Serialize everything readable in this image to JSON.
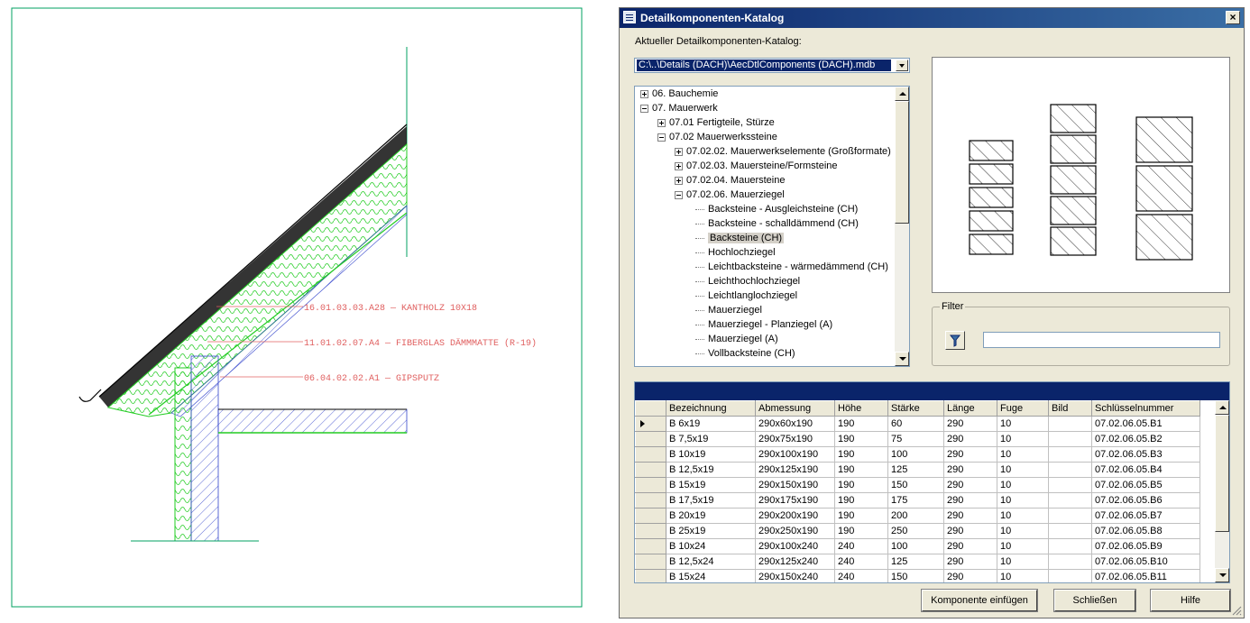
{
  "cad": {
    "annotations": [
      "16.01.03.03.A28  —  KANTHOLZ  10X18",
      "11.01.02.07.A4  —  FIBERGLAS  DÄMMMATTE  (R-19)",
      "06.04.02.02.A1  —  GIPSPUTZ"
    ]
  },
  "dialog": {
    "title": "Detailkomponenten-Katalog",
    "close_label": "×",
    "catalog_label": "Aktueller Detailkomponenten-Katalog:",
    "catalog_path": "C:\\..\\Details (DACH)\\AecDtlComponents (DACH).mdb",
    "tree": [
      {
        "label": "06. Bauchemie",
        "toggle": "plus",
        "level": 0
      },
      {
        "label": "07. Mauerwerk",
        "toggle": "minus",
        "level": 0
      },
      {
        "label": "07.01 Fertigteile, Stürze",
        "toggle": "plus",
        "level": 1
      },
      {
        "label": "07.02 Mauerwerkssteine",
        "toggle": "minus",
        "level": 1
      },
      {
        "label": "07.02.02. Mauerwerkselemente (Großformate)",
        "toggle": "plus",
        "level": 2
      },
      {
        "label": "07.02.03. Mauersteine/Formsteine",
        "toggle": "plus",
        "level": 2
      },
      {
        "label": "07.02.04. Mauersteine",
        "toggle": "plus",
        "level": 2
      },
      {
        "label": "07.02.06. Mauerziegel",
        "toggle": "minus",
        "level": 2
      },
      {
        "label": "Backsteine - Ausgleichsteine (CH)",
        "toggle": "leaf",
        "level": 3
      },
      {
        "label": "Backsteine - schalldämmend (CH)",
        "toggle": "leaf",
        "level": 3
      },
      {
        "label": "Backsteine (CH)",
        "toggle": "leaf",
        "level": 3,
        "selected": true
      },
      {
        "label": "Hochlochziegel",
        "toggle": "leaf",
        "level": 3
      },
      {
        "label": "Leichtbacksteine - wärmedämmend (CH)",
        "toggle": "leaf",
        "level": 3
      },
      {
        "label": "Leichthochlochziegel",
        "toggle": "leaf",
        "level": 3
      },
      {
        "label": "Leichtlanglochziegel",
        "toggle": "leaf",
        "level": 3
      },
      {
        "label": "Mauerziegel",
        "toggle": "leaf",
        "level": 3
      },
      {
        "label": "Mauerziegel - Planziegel (A)",
        "toggle": "leaf",
        "level": 3
      },
      {
        "label": "Mauerziegel (A)",
        "toggle": "leaf",
        "level": 3
      },
      {
        "label": "Vollbacksteine (CH)",
        "toggle": "leaf",
        "level": 3
      }
    ],
    "filter": {
      "legend": "Filter",
      "value": ""
    },
    "table": {
      "columns": [
        "Bezeichnung",
        "Abmessung",
        "Höhe",
        "Stärke",
        "Länge",
        "Fuge",
        "Bild",
        "Schlüsselnummer"
      ],
      "rows": [
        [
          "B 6x19",
          "290x60x190",
          "190",
          "60",
          "290",
          "10",
          "",
          "07.02.06.05.B1"
        ],
        [
          "B 7,5x19",
          "290x75x190",
          "190",
          "75",
          "290",
          "10",
          "",
          "07.02.06.05.B2"
        ],
        [
          "B 10x19",
          "290x100x190",
          "190",
          "100",
          "290",
          "10",
          "",
          "07.02.06.05.B3"
        ],
        [
          "B 12,5x19",
          "290x125x190",
          "190",
          "125",
          "290",
          "10",
          "",
          "07.02.06.05.B4"
        ],
        [
          "B 15x19",
          "290x150x190",
          "190",
          "150",
          "290",
          "10",
          "",
          "07.02.06.05.B5"
        ],
        [
          "B 17,5x19",
          "290x175x190",
          "190",
          "175",
          "290",
          "10",
          "",
          "07.02.06.05.B6"
        ],
        [
          "B 20x19",
          "290x200x190",
          "190",
          "200",
          "290",
          "10",
          "",
          "07.02.06.05.B7"
        ],
        [
          "B 25x19",
          "290x250x190",
          "190",
          "250",
          "290",
          "10",
          "",
          "07.02.06.05.B8"
        ],
        [
          "B 10x24",
          "290x100x240",
          "240",
          "100",
          "290",
          "10",
          "",
          "07.02.06.05.B9"
        ],
        [
          "B 12,5x24",
          "290x125x240",
          "240",
          "125",
          "290",
          "10",
          "",
          "07.02.06.05.B10"
        ],
        [
          "B 15x24",
          "290x150x240",
          "240",
          "150",
          "290",
          "10",
          "",
          "07.02.06.05.B11"
        ]
      ]
    },
    "buttons": {
      "insert": "Komponente einfügen",
      "close": "Schließen",
      "help": "Hilfe"
    }
  }
}
